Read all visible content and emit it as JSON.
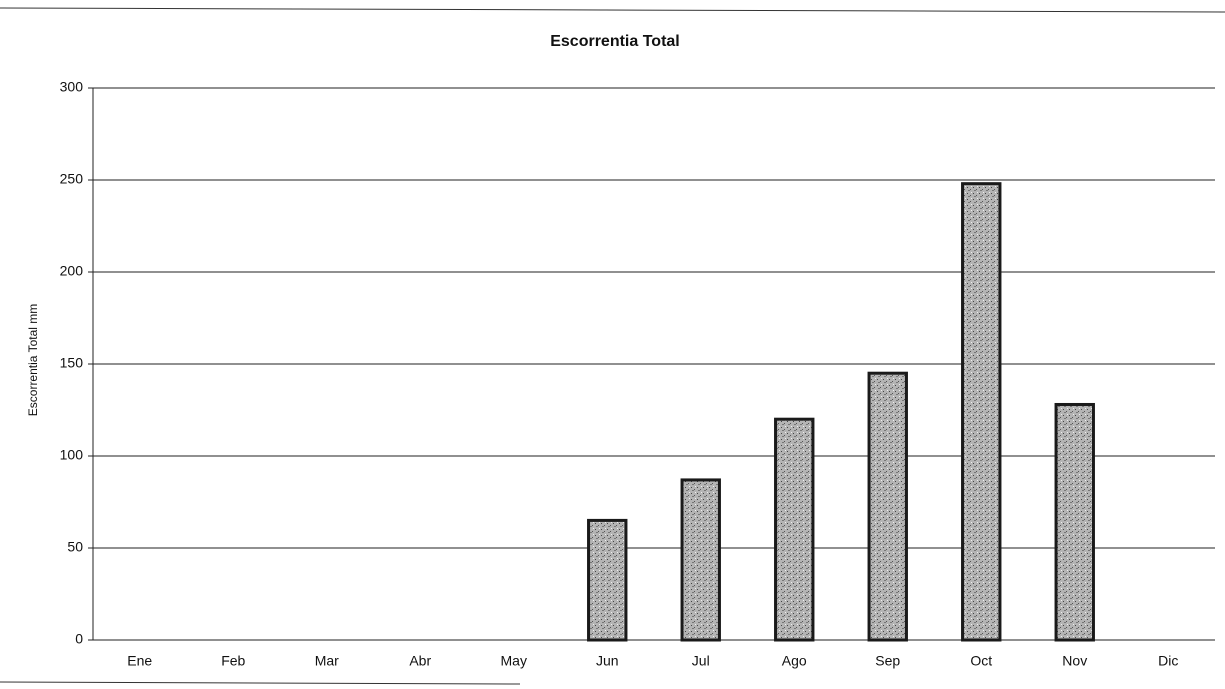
{
  "chart_data": {
    "type": "bar",
    "title": "Escorrentia Total",
    "y_label": "Escorrentia Total mm",
    "categories": [
      "Ene",
      "Feb",
      "Mar",
      "Abr",
      "May",
      "Jun",
      "Jul",
      "Ago",
      "Sep",
      "Oct",
      "Nov",
      "Dic"
    ],
    "values": [
      0,
      0,
      0,
      0,
      0,
      65,
      87,
      120,
      145,
      248,
      128,
      0
    ],
    "color": "#a8a8a8",
    "ylim": [
      0,
      300
    ],
    "yticks": [
      0,
      50,
      100,
      150,
      200,
      250,
      300
    ],
    "grid": true
  }
}
